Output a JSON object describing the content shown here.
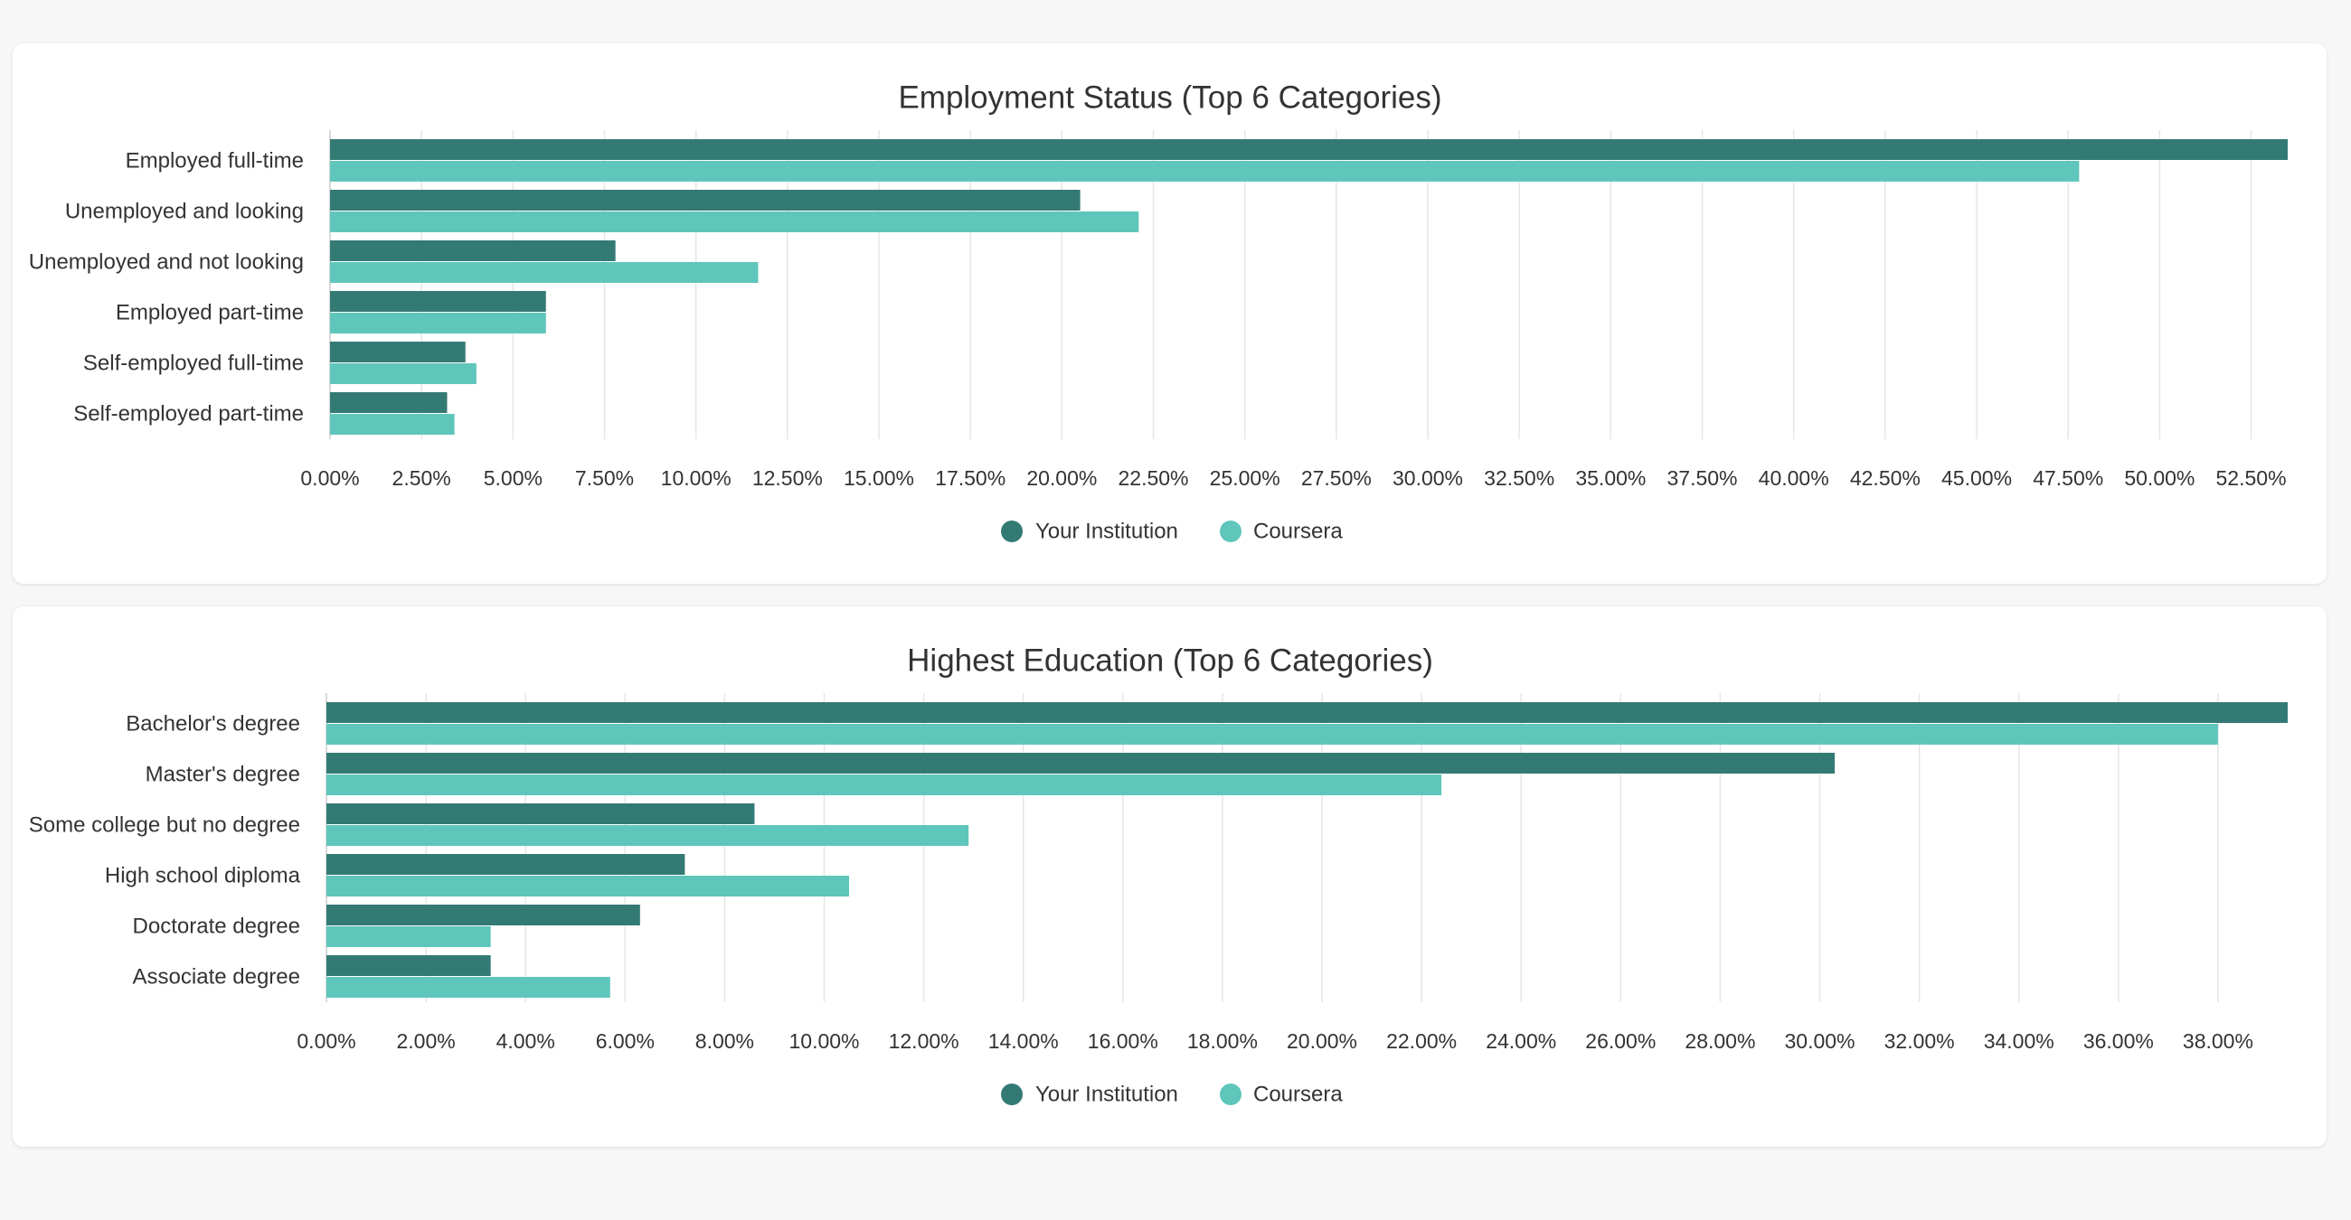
{
  "colors": {
    "your_institution": "#347a74",
    "coursera": "#5fc6bb"
  },
  "chart_data": [
    {
      "type": "bar",
      "orientation": "horizontal",
      "title": "Employment Status (Top 6 Categories)",
      "categories": [
        "Employed full-time",
        "Unemployed and looking",
        "Unemployed and not looking",
        "Employed part-time",
        "Self-employed full-time",
        "Self-employed part-time"
      ],
      "series": [
        {
          "name": "Your Institution",
          "values": [
            53.5,
            20.5,
            7.8,
            5.9,
            3.7,
            3.2
          ]
        },
        {
          "name": "Coursera",
          "values": [
            47.8,
            22.1,
            11.7,
            5.9,
            4.0,
            3.4
          ]
        }
      ],
      "xlim": [
        0,
        53.5
      ],
      "tick_step": 2.5,
      "tick_labels": [
        "0.00%",
        "2.50%",
        "5.00%",
        "7.50%",
        "10.00%",
        "12.50%",
        "15.00%",
        "17.50%",
        "20.00%",
        "22.50%",
        "25.00%",
        "27.50%",
        "30.00%",
        "32.50%",
        "35.00%",
        "37.50%",
        "40.00%",
        "42.50%",
        "45.00%",
        "47.50%",
        "50.00%",
        "52.50%"
      ],
      "grid": true,
      "legend_position": "bottom-center"
    },
    {
      "type": "bar",
      "orientation": "horizontal",
      "title": "Highest Education (Top 6 Categories)",
      "categories": [
        "Bachelor's degree",
        "Master's degree",
        "Some college but no degree",
        "High school diploma",
        "Doctorate degree",
        "Associate degree"
      ],
      "series": [
        {
          "name": "Your Institution",
          "values": [
            39.4,
            30.3,
            8.6,
            7.2,
            6.3,
            3.3
          ]
        },
        {
          "name": "Coursera",
          "values": [
            38.0,
            22.4,
            12.9,
            10.5,
            3.3,
            5.7
          ]
        }
      ],
      "xlim": [
        0,
        39.4
      ],
      "tick_step": 2,
      "tick_labels": [
        "0.00%",
        "2.00%",
        "4.00%",
        "6.00%",
        "8.00%",
        "10.00%",
        "12.00%",
        "14.00%",
        "16.00%",
        "18.00%",
        "20.00%",
        "22.00%",
        "24.00%",
        "26.00%",
        "28.00%",
        "30.00%",
        "32.00%",
        "34.00%",
        "36.00%",
        "38.00%"
      ],
      "grid": true,
      "legend_position": "bottom-center"
    }
  ]
}
